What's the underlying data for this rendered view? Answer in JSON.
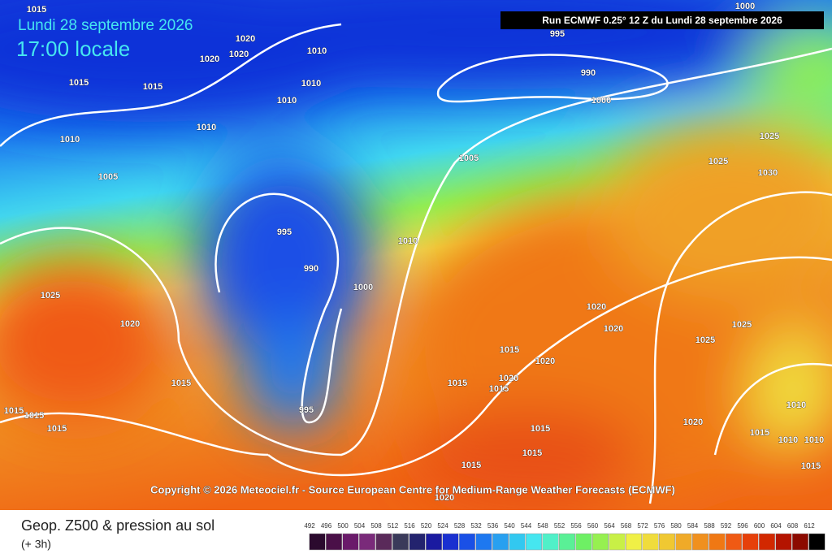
{
  "header": {
    "date": "Lundi 28 septembre 2026",
    "time": "17:00 locale",
    "run": "Run ECMWF 0.25° 12 Z du Lundi 28 septembre 2026"
  },
  "isobar_labels": [
    1015,
    1020,
    1020,
    1020,
    1010,
    1015,
    1015,
    1010,
    1010,
    1010,
    1010,
    1005,
    995,
    990,
    1000,
    1000,
    1005,
    1025,
    1025,
    1030,
    995,
    990,
    1010,
    1000,
    1025,
    1020,
    1020,
    1020,
    1025,
    1025,
    1015,
    1020,
    1015,
    1020,
    1015,
    1015,
    995,
    1015,
    1015,
    1015,
    1010,
    1015,
    1015,
    1015,
    1020,
    1015,
    1010,
    1010,
    1015,
    1020
  ],
  "copyright": "Copyright © 2026 Meteociel.fr - Source European Centre for Medium-Range Weather Forecasts (ECMWF)",
  "footer": {
    "title": "Geop. Z500 & pression au sol",
    "lead": "(+ 3h)"
  },
  "colorbar": {
    "labels": [
      492,
      496,
      500,
      504,
      508,
      512,
      516,
      520,
      524,
      528,
      532,
      536,
      540,
      544,
      548,
      552,
      556,
      560,
      564,
      568,
      572,
      576,
      580,
      584,
      588,
      592,
      596,
      600,
      604,
      608,
      612
    ],
    "colors": [
      "#2b0a2e",
      "#4a1048",
      "#6a1a6a",
      "#7a2a7a",
      "#5a2a5a",
      "#3a3a5a",
      "#23236e",
      "#1a1aa0",
      "#1a30d0",
      "#1a50e6",
      "#1e78f0",
      "#28a0f0",
      "#32c8f0",
      "#46e6f0",
      "#50f0c8",
      "#5af096",
      "#6ef064",
      "#96f050",
      "#c8f046",
      "#f0f046",
      "#f0dc3c",
      "#f0c832",
      "#f0aa28",
      "#f0901e",
      "#f07814",
      "#f05a14",
      "#e6400a",
      "#d22800",
      "#b41400",
      "#8c0a00",
      "#000000"
    ]
  }
}
